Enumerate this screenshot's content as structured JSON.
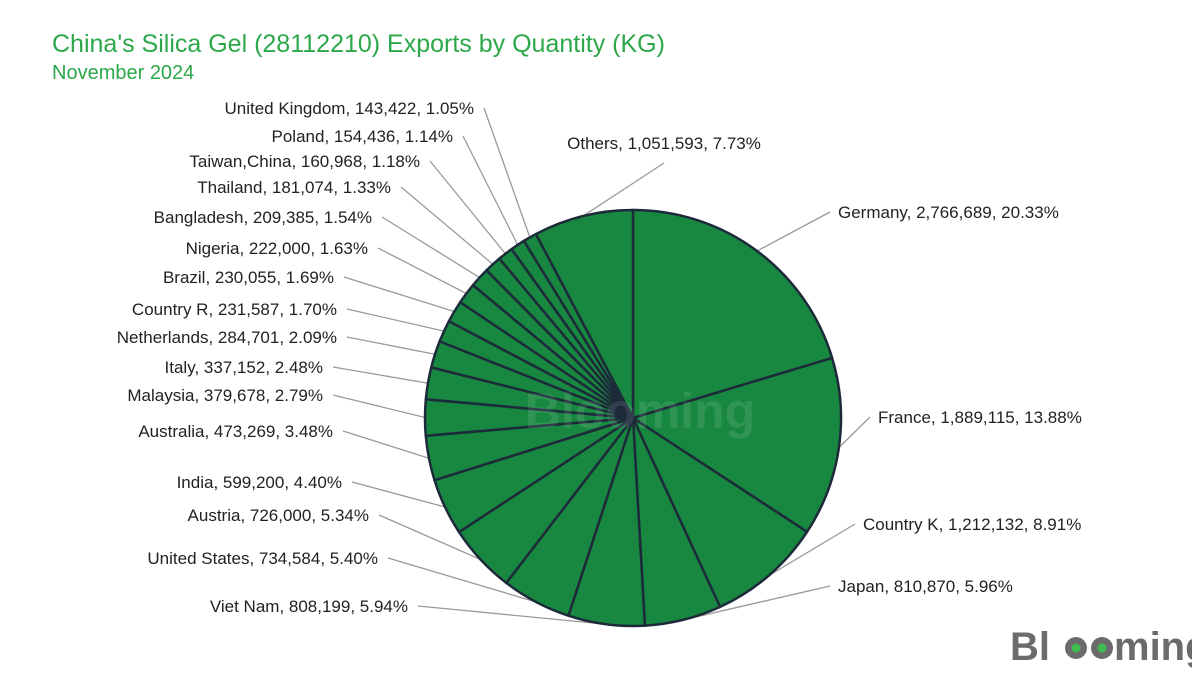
{
  "brand": {
    "watermark": "Blooming",
    "logo": "Blooming"
  },
  "colors": {
    "title": "#2ca84a",
    "slice": "#188841",
    "slice_stroke": "#1c2a3a",
    "leader": "#9a9a9a",
    "label": "#222222"
  },
  "chart_data": {
    "type": "pie",
    "title": "China's Silica Gel (28112210) Exports by Quantity (KG)",
    "subtitle": "November 2024",
    "unit": "KG",
    "slices": [
      {
        "name": "Germany",
        "value": 2766689,
        "percent": 20.33,
        "label": "Germany, 2,766,689, 20.33%"
      },
      {
        "name": "France",
        "value": 1889115,
        "percent": 13.88,
        "label": "France, 1,889,115, 13.88%"
      },
      {
        "name": "Country K",
        "value": 1212132,
        "percent": 8.91,
        "label": "Country K, 1,212,132, 8.91%"
      },
      {
        "name": "Japan",
        "value": 810870,
        "percent": 5.96,
        "label": "Japan, 810,870, 5.96%"
      },
      {
        "name": "Viet Nam",
        "value": 808199,
        "percent": 5.94,
        "label": "Viet Nam, 808,199, 5.94%"
      },
      {
        "name": "United States",
        "value": 734584,
        "percent": 5.4,
        "label": "United States, 734,584, 5.40%"
      },
      {
        "name": "Austria",
        "value": 726000,
        "percent": 5.34,
        "label": "Austria, 726,000, 5.34%"
      },
      {
        "name": "India",
        "value": 599200,
        "percent": 4.4,
        "label": "India, 599,200, 4.40%"
      },
      {
        "name": "Australia",
        "value": 473269,
        "percent": 3.48,
        "label": "Australia, 473,269, 3.48%"
      },
      {
        "name": "Malaysia",
        "value": 379678,
        "percent": 2.79,
        "label": "Malaysia, 379,678, 2.79%"
      },
      {
        "name": "Italy",
        "value": 337152,
        "percent": 2.48,
        "label": "Italy, 337,152, 2.48%"
      },
      {
        "name": "Netherlands",
        "value": 284701,
        "percent": 2.09,
        "label": "Netherlands, 284,701, 2.09%"
      },
      {
        "name": "Country R",
        "value": 231587,
        "percent": 1.7,
        "label": "Country R, 231,587, 1.70%"
      },
      {
        "name": "Brazil",
        "value": 230055,
        "percent": 1.69,
        "label": "Brazil, 230,055, 1.69%"
      },
      {
        "name": "Nigeria",
        "value": 222000,
        "percent": 1.63,
        "label": "Nigeria, 222,000, 1.63%"
      },
      {
        "name": "Bangladesh",
        "value": 209385,
        "percent": 1.54,
        "label": "Bangladesh, 209,385, 1.54%"
      },
      {
        "name": "Thailand",
        "value": 181074,
        "percent": 1.33,
        "label": "Thailand, 181,074, 1.33%"
      },
      {
        "name": "Taiwan,China",
        "value": 160968,
        "percent": 1.18,
        "label": "Taiwan,China, 160,968, 1.18%"
      },
      {
        "name": "Poland",
        "value": 154436,
        "percent": 1.14,
        "label": "Poland, 154,436, 1.14%"
      },
      {
        "name": "United Kingdom",
        "value": 143422,
        "percent": 1.05,
        "label": "United Kingdom, 143,422, 1.05%"
      },
      {
        "name": "Others",
        "value": 1051593,
        "percent": 7.73,
        "label": "Others, 1,051,593, 7.73%"
      }
    ]
  }
}
